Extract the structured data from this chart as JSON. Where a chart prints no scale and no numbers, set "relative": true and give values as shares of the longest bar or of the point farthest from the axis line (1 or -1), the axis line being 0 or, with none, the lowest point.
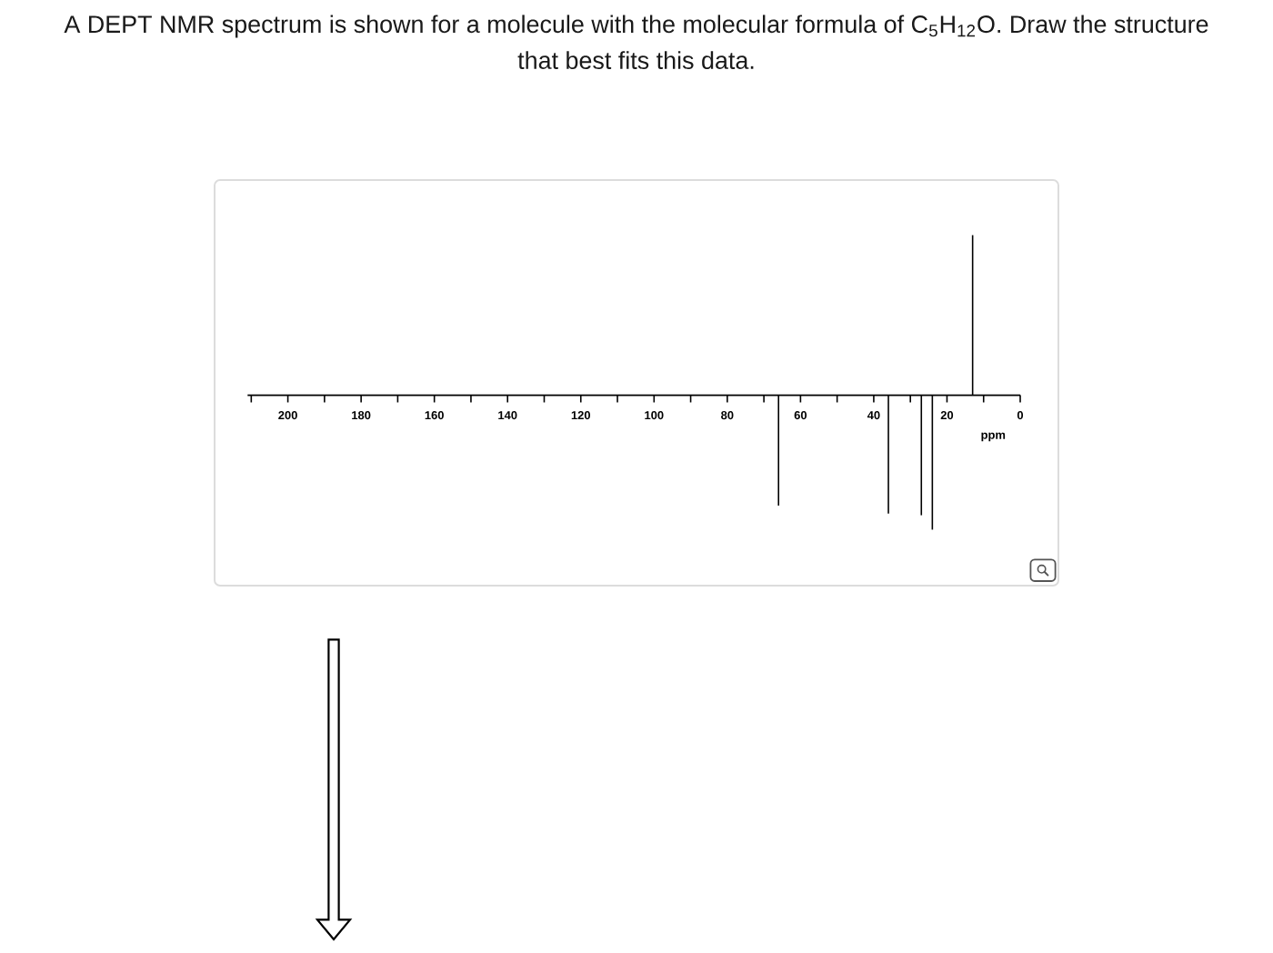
{
  "chart_data": {
    "type": "bar",
    "title": "A DEPT NMR spectrum is shown for a molecule with the molecular formula of C$_{5}$H$_{12}$O. Draw the structure that best fits this data.",
    "xlabel": "ppm",
    "x": [
      66,
      36,
      27,
      24,
      13
    ],
    "values": [
      -0.69,
      -0.74,
      -0.75,
      -0.84,
      1
    ],
    "relative": true,
    "color": "#000000",
    "xlim": [
      211,
      0
    ],
    "xticks": [
      {
        "value": 210,
        "label": null
      },
      200,
      {
        "value": 190,
        "label": null
      },
      180,
      {
        "value": 170,
        "label": null
      },
      160,
      {
        "value": 150,
        "label": null
      },
      140,
      {
        "value": 130,
        "label": null
      },
      120,
      {
        "value": 110,
        "label": null
      },
      100,
      {
        "value": 90,
        "label": null
      },
      80,
      {
        "value": 70,
        "label": null
      },
      60,
      {
        "value": 50,
        "label": null
      },
      40,
      {
        "value": 30,
        "label": null
      },
      20,
      {
        "value": 10,
        "label": null
      },
      0
    ]
  }
}
